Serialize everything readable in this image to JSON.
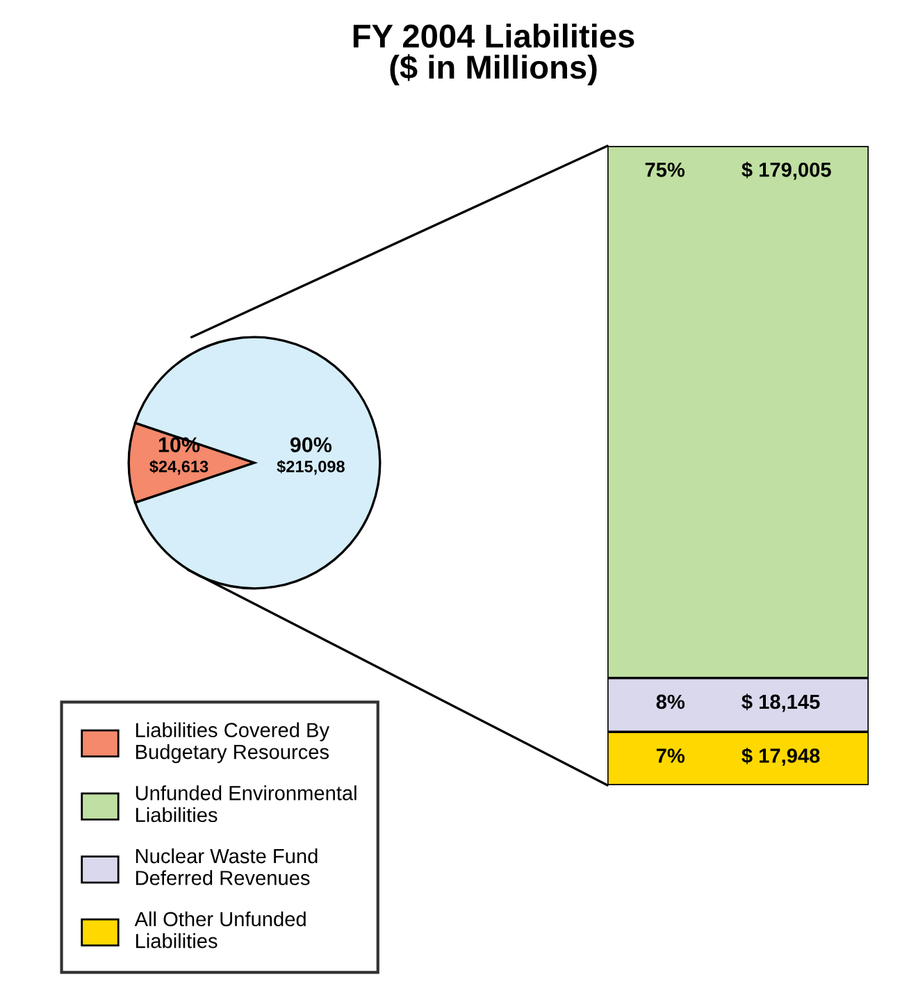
{
  "chart_data": [
    {
      "type": "pie",
      "title": "FY 2004 Liabilities\n($ in Millions)",
      "categories": [
        "Liabilities Covered By Budgetary Resources",
        null
      ],
      "values": [
        24613,
        215098
      ],
      "colors": [
        "#f4896b",
        "#d5eefa"
      ],
      "value_labels": [
        "10%\n$24,613",
        "90%\n$215,098"
      ],
      "legend": "bottom left"
    },
    {
      "type": "bar",
      "stacked": true,
      "categories": [
        null
      ],
      "series": [
        {
          "name": "All Other Unfunded Liabilities",
          "color": "#ffd800",
          "values": [
            17948
          ],
          "value_labels": [
            "7%          $ 17,948"
          ]
        },
        {
          "name": "Nuclear Waste Fund Deferred Revenues",
          "color": "#d9d8ec",
          "values": [
            18145
          ],
          "value_labels": [
            "8%          $ 18,145"
          ]
        },
        {
          "name": "Unfunded Environmental Liabilities",
          "color": "#c0dfa2",
          "values": [
            179005
          ],
          "value_labels": [
            "75%          $ 179,005"
          ]
        }
      ],
      "legend": "bottom left"
    }
  ]
}
